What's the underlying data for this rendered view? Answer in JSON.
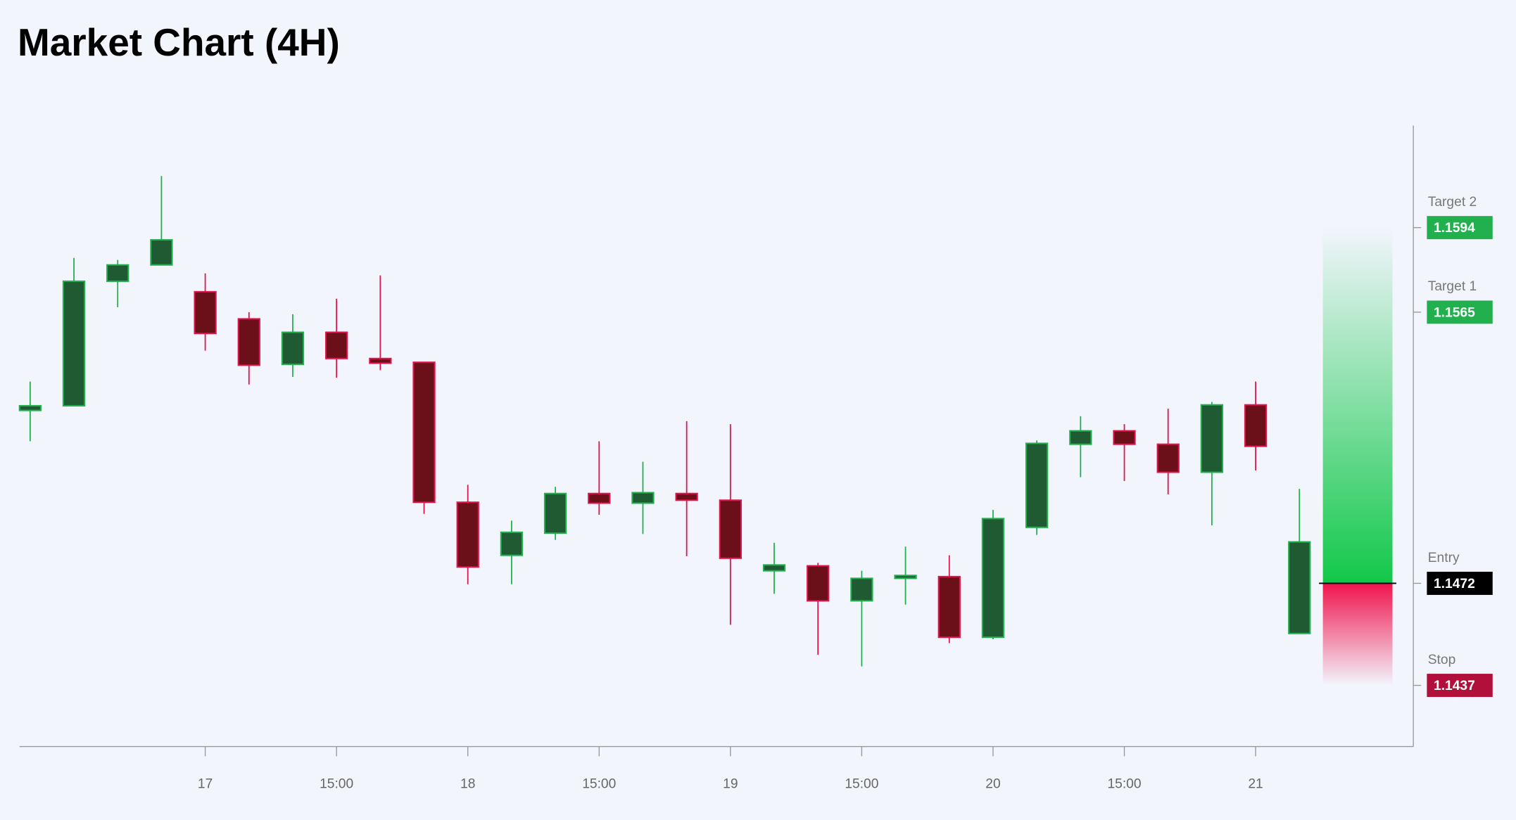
{
  "chart_data": {
    "type": "candlestick",
    "title": "Market Chart (4H)",
    "categories": [
      null,
      null,
      null,
      null,
      "17",
      null,
      null,
      "15:00",
      null,
      null,
      "18",
      null,
      null,
      "15:00",
      null,
      null,
      "19",
      null,
      null,
      "15:00",
      null,
      null,
      "20",
      null,
      null,
      "15:00",
      null,
      null,
      "21",
      null
    ],
    "open": [
      1.15313,
      1.15329,
      1.15756,
      1.15812,
      1.1572,
      1.15627,
      1.15471,
      1.15581,
      1.15491,
      1.15478,
      1.14998,
      1.14816,
      1.14892,
      1.15028,
      1.14995,
      1.15028,
      1.15005,
      1.14763,
      1.1478,
      1.1466,
      1.14737,
      1.14743,
      1.14535,
      1.14912,
      1.15197,
      1.15243,
      1.15197,
      1.15101,
      1.15332,
      1.14548
    ],
    "high": [
      1.15412,
      1.15836,
      1.15829,
      1.16117,
      1.15783,
      1.1565,
      1.15643,
      1.15696,
      1.15776,
      1.15478,
      1.15058,
      1.14935,
      1.15051,
      1.15207,
      1.15137,
      1.15276,
      1.15266,
      1.14859,
      1.1479,
      1.14763,
      1.14846,
      1.14816,
      1.14972,
      1.1521,
      1.15293,
      1.15266,
      1.15319,
      1.15342,
      1.15412,
      1.15044
    ],
    "low": [
      1.15207,
      1.15329,
      1.15667,
      1.15812,
      1.15518,
      1.15402,
      1.15428,
      1.15425,
      1.15451,
      1.14958,
      1.14717,
      1.14717,
      1.14869,
      1.14955,
      1.14889,
      1.14813,
      1.14578,
      1.14684,
      1.14475,
      1.14435,
      1.14647,
      1.14515,
      1.14528,
      1.14886,
      1.15084,
      1.15071,
      1.15025,
      1.14919,
      1.15107,
      1.14548
    ],
    "close": [
      1.15329,
      1.15756,
      1.15812,
      1.15898,
      1.15577,
      1.15468,
      1.15581,
      1.15491,
      1.15475,
      1.14998,
      1.14776,
      1.14895,
      1.15028,
      1.14995,
      1.15031,
      1.15005,
      1.14806,
      1.14783,
      1.1466,
      1.14737,
      1.14747,
      1.14535,
      1.14942,
      1.152,
      1.15243,
      1.15197,
      1.15101,
      1.15332,
      1.1519,
      1.14862
    ],
    "up_color": "#22b04f",
    "down_color": "#e0144e",
    "ylim": [
      1.1416,
      1.1629
    ],
    "levels": [
      {
        "name": "Target 2",
        "value": 1.1594,
        "color": "#22b04f"
      },
      {
        "name": "Target 1",
        "value": 1.1565,
        "color": "#22b04f"
      },
      {
        "name": "Entry",
        "value": 1.1472,
        "color": "#000000"
      },
      {
        "name": "Stop",
        "value": 1.1437,
        "color": "#b0103a"
      }
    ]
  }
}
